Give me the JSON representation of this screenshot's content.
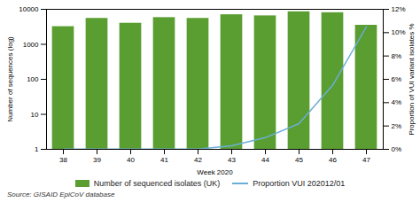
{
  "chart_data": {
    "type": "bar",
    "x": [
      38,
      39,
      40,
      41,
      42,
      43,
      44,
      45,
      46,
      47
    ],
    "xlabel": "Week 2020",
    "xlim": [
      37.5,
      47.5
    ],
    "xticks": [
      38,
      39,
      40,
      41,
      42,
      43,
      44,
      45,
      46,
      47
    ],
    "ylabel": "Number of sequences (log)",
    "ylim": [
      1,
      10000
    ],
    "yticks": [
      1,
      10,
      100,
      1000,
      10000
    ],
    "log": "y",
    "y2label": "Proportion of VUI variant isolates %",
    "y2lim": [
      0,
      12
    ],
    "y2ticks": [
      {
        "value": 0,
        "label": "0%"
      },
      {
        "value": 2,
        "label": "2%"
      },
      {
        "value": 4,
        "label": "4%"
      },
      {
        "value": 6,
        "label": "6%"
      },
      {
        "value": 8,
        "label": "8%"
      },
      {
        "value": 10,
        "label": "10%"
      },
      {
        "value": 12,
        "label": "12%"
      }
    ],
    "series": [
      {
        "name": "Number of sequenced isolates (UK)",
        "type": "bar",
        "color": "#5a9e32",
        "values": [
          3200,
          5500,
          4000,
          5800,
          5500,
          7000,
          6500,
          8500,
          8000,
          3500
        ]
      },
      {
        "name": "Proportion VUI 202012/01",
        "type": "line",
        "color": "#6baed6",
        "axis": "y2",
        "values": [
          0.02,
          0.02,
          0.02,
          0.02,
          0.02,
          0.3,
          1.0,
          2.2,
          5.5,
          10.5
        ]
      }
    ],
    "legend": "bottom",
    "grid": false,
    "source": "Source: GISAID EpiCoV database"
  }
}
